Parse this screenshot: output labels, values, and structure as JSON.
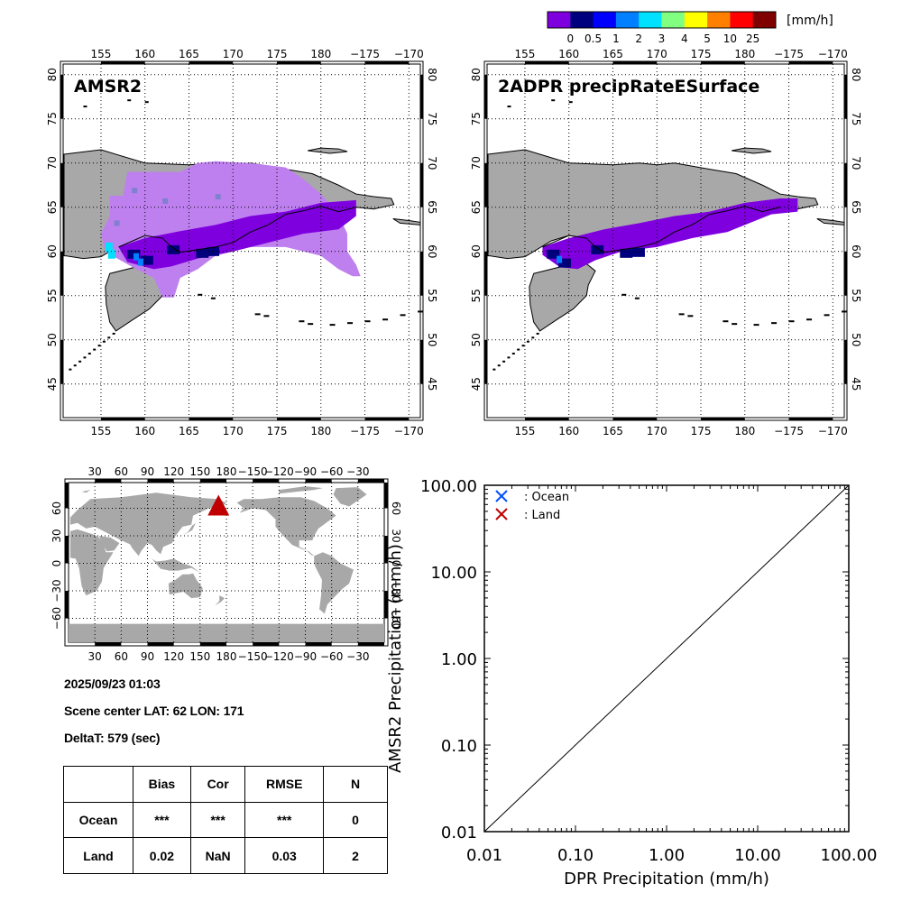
{
  "colorbar": {
    "unit_label": "[mm/h]",
    "colors": [
      "#7f00df",
      "#00007f",
      "#0000ff",
      "#0080ff",
      "#00e0ff",
      "#80ff80",
      "#ffff00",
      "#ff8000",
      "#ff0000",
      "#800000"
    ],
    "tick_labels": [
      "0",
      "0.5",
      "1",
      "2",
      "3",
      "4",
      "5",
      "10",
      "25"
    ]
  },
  "maps": [
    {
      "id": "amsr2",
      "title": "AMSR2",
      "lon_ticks": [
        "155",
        "160",
        "165",
        "170",
        "175",
        "180",
        "−175",
        "−170"
      ],
      "lat_ticks": [
        "80",
        "75",
        "70",
        "65",
        "60",
        "55",
        "50",
        "45"
      ]
    },
    {
      "id": "dpr",
      "title": "2ADPR precipRateESurface",
      "lon_ticks": [
        "155",
        "160",
        "165",
        "170",
        "175",
        "180",
        "−175",
        "−170"
      ],
      "lat_ticks": [
        "80",
        "75",
        "70",
        "65",
        "60",
        "55",
        "50",
        "45"
      ]
    }
  ],
  "globe": {
    "lon_ticks": [
      "30",
      "60",
      "90",
      "120",
      "150",
      "180",
      "−150",
      "−120",
      "−90",
      "−60",
      "−30"
    ],
    "lat_ticks": [
      "60",
      "30",
      "0",
      "−30",
      "−60"
    ],
    "marker": {
      "lat": 62,
      "lon": 171,
      "color": "#c00000"
    }
  },
  "info": {
    "datetime": "2025/09/23 01:03",
    "scene_center": "Scene center LAT: 62   LON: 171",
    "delta_t": "DeltaT:  579 (sec)"
  },
  "stats_table": {
    "headers": [
      "",
      "Bias",
      "Cor",
      "RMSE",
      "N"
    ],
    "rows": [
      {
        "label": "Ocean",
        "bias": "***",
        "cor": "***",
        "rmse": "***",
        "n": "0"
      },
      {
        "label": "Land",
        "bias": "0.02",
        "cor": "NaN",
        "rmse": "0.03",
        "n": "2"
      }
    ]
  },
  "chart_data": {
    "type": "scatter",
    "title": "",
    "xlabel": "DPR Precipitation (mm/h)",
    "ylabel": "AMSR2 Precipitation (mm/h)",
    "xscale": "log",
    "yscale": "log",
    "xlim": [
      0.01,
      100
    ],
    "ylim": [
      0.01,
      100
    ],
    "x_tick_labels": [
      "0.01",
      "0.10",
      "1.00",
      "10.00",
      "100.00"
    ],
    "y_tick_labels": [
      "0.01",
      "0.10",
      "1.00",
      "10.00",
      "100.00"
    ],
    "x_tick_values": [
      0.01,
      0.1,
      1,
      10,
      100
    ],
    "y_tick_values": [
      0.01,
      0.1,
      1,
      10,
      100
    ],
    "reference_line": "1:1",
    "legend_position": "top-left",
    "series": [
      {
        "name": ": Ocean",
        "marker": "x",
        "color": "#0050ff",
        "points": []
      },
      {
        "name": ": Land",
        "marker": "x",
        "color": "#c00000",
        "points": []
      }
    ]
  }
}
